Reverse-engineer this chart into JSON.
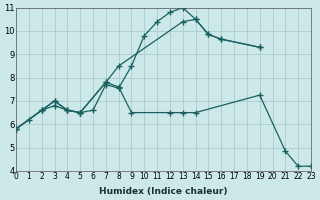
{
  "xlabel": "Humidex (Indice chaleur)",
  "background_color": "#cde8e8",
  "grid_color": "#b0d0d0",
  "line_color": "#1a6060",
  "xlim": [
    0,
    23
  ],
  "ylim": [
    4,
    11
  ],
  "yticks": [
    4,
    5,
    6,
    7,
    8,
    9,
    10,
    11
  ],
  "xticks": [
    0,
    1,
    2,
    3,
    4,
    5,
    6,
    7,
    8,
    9,
    10,
    11,
    12,
    13,
    14,
    15,
    16,
    17,
    18,
    19,
    20,
    21,
    22,
    23
  ],
  "xtick_labels": [
    "0",
    "1",
    "2",
    "3",
    "4",
    "5",
    "6",
    "7",
    "8",
    "9",
    "10",
    "11",
    "12",
    "13",
    "14",
    "15",
    "16",
    "17",
    "18",
    "19",
    "20",
    "21",
    "22",
    "23"
  ],
  "line1_x": [
    0,
    1,
    2,
    3,
    4,
    5,
    6,
    7,
    8,
    9,
    10,
    11,
    12,
    13,
    14,
    15,
    16,
    19
  ],
  "line1_y": [
    5.8,
    6.2,
    6.6,
    6.8,
    6.6,
    6.5,
    6.6,
    7.7,
    7.55,
    8.5,
    9.8,
    10.4,
    10.8,
    11.0,
    10.5,
    9.85,
    9.65,
    9.3
  ],
  "line2_x": [
    0,
    2,
    3,
    4,
    5,
    7,
    8,
    9,
    12,
    13,
    14,
    19,
    21,
    22,
    23
  ],
  "line2_y": [
    5.8,
    6.6,
    7.0,
    6.6,
    6.5,
    7.8,
    7.6,
    6.5,
    6.5,
    6.5,
    6.5,
    7.25,
    4.85,
    4.2,
    4.2
  ],
  "line3_x": [
    0,
    2,
    3,
    4,
    5,
    7,
    8,
    13,
    14,
    15,
    16,
    19
  ],
  "line3_y": [
    5.8,
    6.6,
    7.0,
    6.6,
    6.5,
    7.8,
    8.5,
    10.4,
    10.5,
    9.85,
    9.65,
    9.3
  ]
}
